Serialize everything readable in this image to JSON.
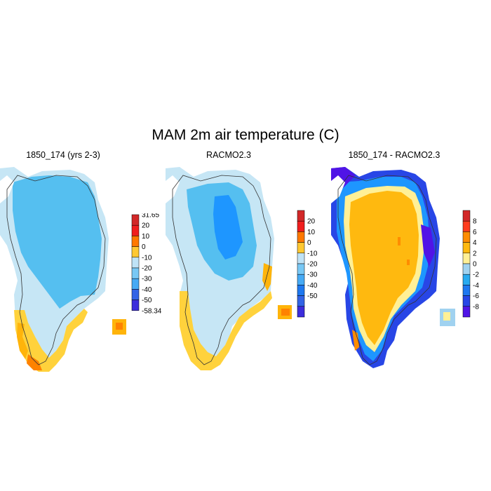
{
  "title": "MAM 2m air temperature (C)",
  "colors": {
    "land_palette": [
      "#c6e6f5",
      "#55bff0",
      "#1e96ff",
      "#1e6eeb",
      "#2d3cd7",
      "#5a00e6"
    ],
    "warm_palette": [
      "#ffd23c",
      "#ffb40a",
      "#ff8200",
      "#f02d00",
      "#c81e1e"
    ],
    "coast_line": "#333333"
  },
  "panels": [
    {
      "title": "1850_174 (yrs 2-3)",
      "colorbar": {
        "labels": [
          "31.65",
          "20",
          "10",
          "0",
          "-10",
          "-20",
          "-30",
          "-40",
          "-50",
          "-58.34"
        ],
        "colors": [
          "#d22828",
          "#f01e1e",
          "#ff7800",
          "#ffc832",
          "#bfe3f7",
          "#78c8f5",
          "#46aaf5",
          "#3264e6",
          "#3c2ddc"
        ]
      }
    },
    {
      "title": "RACMO2.3",
      "colorbar": {
        "labels": [
          "20",
          "10",
          "0",
          "-10",
          "-20",
          "-30",
          "-40",
          "-50"
        ],
        "colors": [
          "#d22828",
          "#f01e1e",
          "#ff7800",
          "#ffc832",
          "#bfe3f7",
          "#78c8f5",
          "#46aaf5",
          "#1e78f0",
          "#3264e6",
          "#3c2ddc"
        ]
      }
    },
    {
      "title": "1850_174 - RACMO2.3",
      "colorbar": {
        "labels": [
          "8",
          "6",
          "4",
          "2",
          "0",
          "-2",
          "-4",
          "-6",
          "-8"
        ],
        "colors": [
          "#d22828",
          "#ff3c1e",
          "#ff8c00",
          "#ffb90f",
          "#fff096",
          "#a0d2f0",
          "#28aaf0",
          "#1e78f0",
          "#2846e6",
          "#5014e6"
        ]
      }
    }
  ]
}
